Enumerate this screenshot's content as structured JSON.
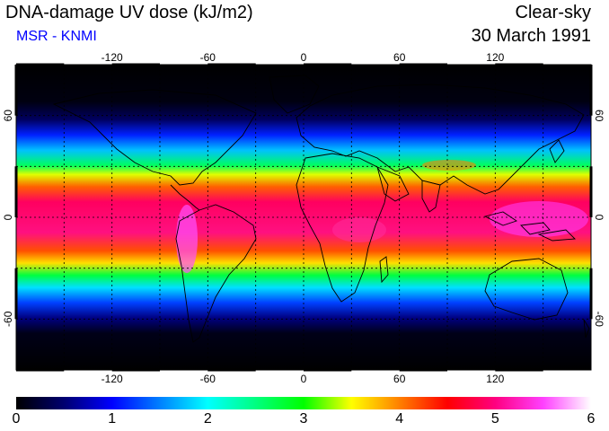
{
  "header": {
    "title": "DNA-damage UV dose (kJ/m2)",
    "subtitle": "MSR - KNMI",
    "sky_condition": "Clear-sky",
    "date": "30 March 1991"
  },
  "map": {
    "projection": "equirectangular",
    "lon_ticks_top": [
      "-120",
      "-60",
      "0",
      "60",
      "120"
    ],
    "lon_ticks_bottom": [
      "-120",
      "-60",
      "0",
      "60",
      "120"
    ],
    "lat_ticks_left": [
      "60",
      "0",
      "-60"
    ],
    "lat_ticks_right": [
      "60",
      "0",
      "-60"
    ],
    "gridlines": "dotted every 30 degrees",
    "field_peak_band": "tropics, approx. 20S to 20N, values 4.5-6",
    "high_latitudes": "values near 0"
  },
  "colorbar": {
    "min": 0,
    "max": 6,
    "labels": [
      "0",
      "1",
      "2",
      "3",
      "4",
      "5",
      "6"
    ],
    "colors": [
      "#000000",
      "#000070",
      "#0000ff",
      "#0080ff",
      "#00ffff",
      "#00ff80",
      "#00ff00",
      "#ffff00",
      "#ff8000",
      "#ff0000",
      "#ff0080",
      "#ff40ff",
      "#ffffff"
    ]
  }
}
